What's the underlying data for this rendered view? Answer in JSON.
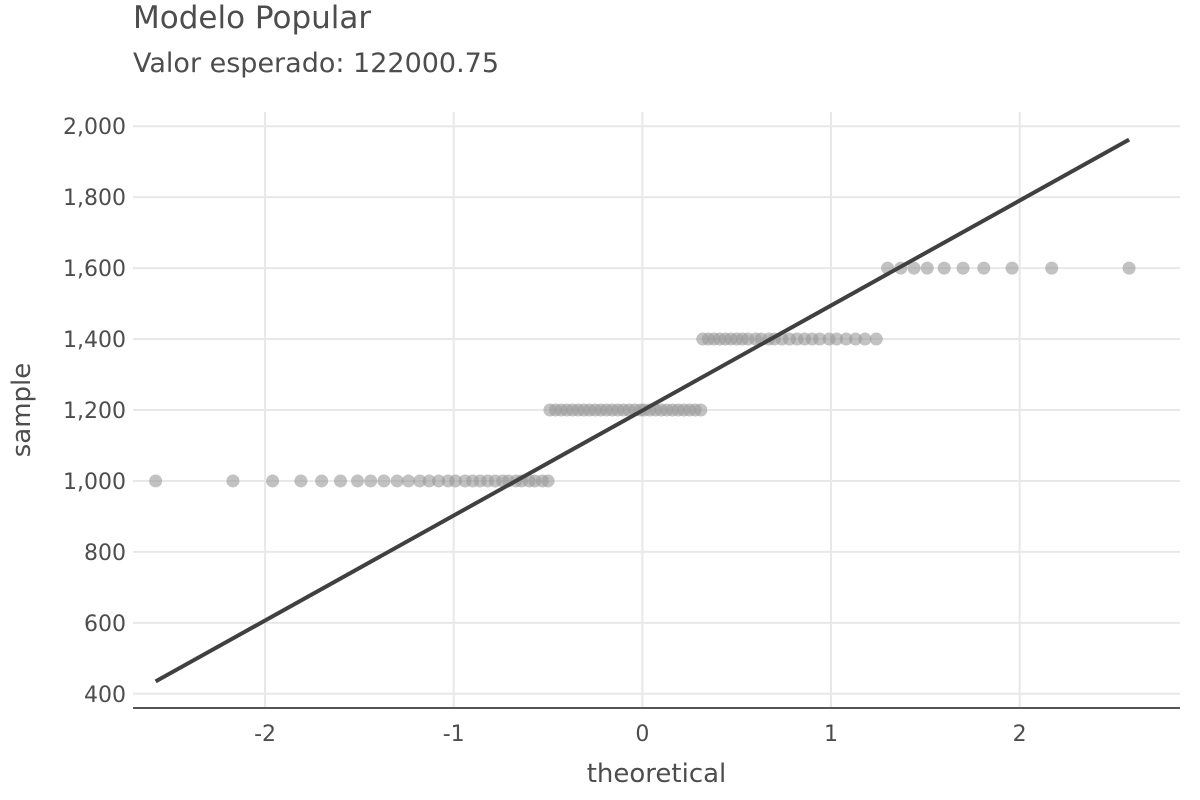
{
  "chart_data": {
    "type": "scatter",
    "title": "Modelo Popular",
    "subtitle": "Valor esperado: 122000.75",
    "xlabel": "theoretical",
    "ylabel": "sample",
    "xlim": [
      -2.7,
      2.85
    ],
    "ylim": [
      360,
      2040
    ],
    "x_ticks": [
      -2,
      -1,
      0,
      1,
      2
    ],
    "y_ticks": [
      400,
      600,
      800,
      1000,
      1200,
      1400,
      1600,
      1800,
      2000
    ],
    "y_tick_labels": [
      "400",
      "600",
      "800",
      "1,000",
      "1,200",
      "1,400",
      "1,600",
      "1,800",
      "2,000"
    ],
    "grid": true,
    "colors": {
      "points": "#999999",
      "line": "#404040",
      "grid": "#e8e8e8",
      "axis": "#555555"
    },
    "series": [
      {
        "type": "scatter",
        "groups": [
          {
            "y": 1000,
            "x": [
              -2.58,
              -2.17,
              -1.96,
              -1.81,
              -1.7,
              -1.6,
              -1.51,
              -1.44,
              -1.37,
              -1.3,
              -1.24,
              -1.18,
              -1.13,
              -1.08,
              -1.03,
              -0.99,
              -0.94,
              -0.9,
              -0.86,
              -0.82,
              -0.78,
              -0.74,
              -0.71,
              -0.67,
              -0.64,
              -0.6,
              -0.57,
              -0.53,
              -0.5
            ]
          },
          {
            "y": 1200,
            "x": [
              -0.49,
              -0.46,
              -0.43,
              -0.4,
              -0.37,
              -0.34,
              -0.31,
              -0.28,
              -0.25,
              -0.22,
              -0.19,
              -0.16,
              -0.13,
              -0.1,
              -0.07,
              -0.04,
              -0.01,
              0.01,
              0.04,
              0.07,
              0.1,
              0.13,
              0.16,
              0.19,
              0.22,
              0.25,
              0.28,
              0.31
            ]
          },
          {
            "y": 1400,
            "x": [
              0.32,
              0.35,
              0.38,
              0.41,
              0.44,
              0.47,
              0.5,
              0.53,
              0.56,
              0.6,
              0.63,
              0.67,
              0.7,
              0.74,
              0.78,
              0.82,
              0.86,
              0.9,
              0.94,
              0.99,
              1.03,
              1.08,
              1.13,
              1.18,
              1.24
            ]
          },
          {
            "y": 1600,
            "x": [
              1.3,
              1.37,
              1.44,
              1.51,
              1.6,
              1.7,
              1.81,
              1.96,
              2.17,
              2.58
            ]
          }
        ]
      },
      {
        "type": "line",
        "x": [
          -2.58,
          2.58
        ],
        "y": [
          435,
          1962
        ]
      }
    ]
  }
}
